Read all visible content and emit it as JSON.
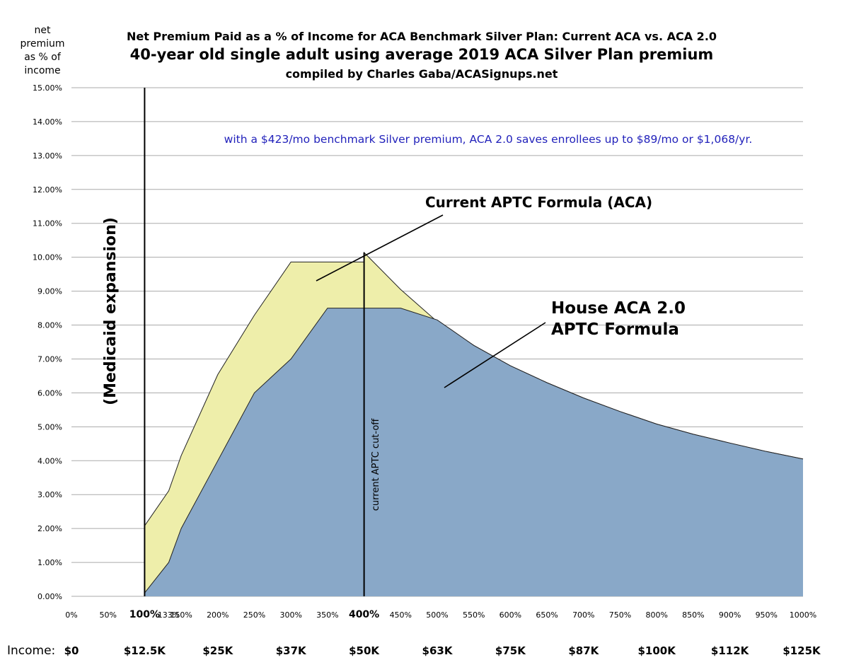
{
  "chart_data": {
    "type": "area",
    "title_lines": [
      "Net Premium Paid as a % of Income for ACA Benchmark Silver Plan: Current ACA vs. ACA 2.0",
      "40-year old single adult using average 2019 ACA Silver Plan premium",
      "compiled by Charles Gaba/ACASignups.net"
    ],
    "ylabel_lines": [
      "net",
      "premium",
      "as % of",
      "income"
    ],
    "ylim": [
      0,
      15
    ],
    "y_ticks": [
      "0.00%",
      "1.00%",
      "2.00%",
      "3.00%",
      "4.00%",
      "5.00%",
      "6.00%",
      "7.00%",
      "8.00%",
      "9.00%",
      "10.00%",
      "11.00%",
      "12.00%",
      "13.00%",
      "14.00%",
      "15.00%"
    ],
    "x_ticks": [
      {
        "x": 0,
        "label": "0%"
      },
      {
        "x": 50,
        "label": "50%"
      },
      {
        "x": 100,
        "label": "100%",
        "bold": true
      },
      {
        "x": 133,
        "label": "133%"
      },
      {
        "x": 150,
        "label": "150%"
      },
      {
        "x": 200,
        "label": "200%"
      },
      {
        "x": 250,
        "label": "250%"
      },
      {
        "x": 300,
        "label": "300%"
      },
      {
        "x": 350,
        "label": "350%"
      },
      {
        "x": 400,
        "label": "400%",
        "bold": true
      },
      {
        "x": 450,
        "label": "450%"
      },
      {
        "x": 500,
        "label": "500%"
      },
      {
        "x": 550,
        "label": "550%"
      },
      {
        "x": 600,
        "label": "600%"
      },
      {
        "x": 650,
        "label": "650%"
      },
      {
        "x": 700,
        "label": "700%"
      },
      {
        "x": 750,
        "label": "750%"
      },
      {
        "x": 800,
        "label": "800%"
      },
      {
        "x": 850,
        "label": "850%"
      },
      {
        "x": 900,
        "label": "900%"
      },
      {
        "x": 950,
        "label": "950%"
      },
      {
        "x": 1000,
        "label": "1000%"
      }
    ],
    "income_label": "Income:",
    "income_ticks": [
      {
        "x": 0,
        "label": "$0"
      },
      {
        "x": 100,
        "label": "$12.5K"
      },
      {
        "x": 200,
        "label": "$25K"
      },
      {
        "x": 300,
        "label": "$37K"
      },
      {
        "x": 400,
        "label": "$50K"
      },
      {
        "x": 500,
        "label": "$63K"
      },
      {
        "x": 600,
        "label": "$75K"
      },
      {
        "x": 700,
        "label": "$87K"
      },
      {
        "x": 800,
        "label": "$100K"
      },
      {
        "x": 900,
        "label": "$112K"
      },
      {
        "x": 1000,
        "label": "$125K"
      }
    ],
    "series": [
      {
        "name": "Current APTC Formula (ACA)",
        "color": "#eeeeaa",
        "points": [
          [
            100,
            2.08
          ],
          [
            133,
            3.11
          ],
          [
            150,
            4.15
          ],
          [
            200,
            6.54
          ],
          [
            250,
            8.29
          ],
          [
            300,
            9.86
          ],
          [
            400,
            9.86
          ],
          [
            400,
            10.14
          ],
          [
            450,
            9.05
          ],
          [
            500,
            8.1
          ],
          [
            550,
            7.4
          ],
          [
            600,
            6.8
          ],
          [
            650,
            6.3
          ],
          [
            700,
            5.85
          ],
          [
            750,
            5.45
          ],
          [
            800,
            5.08
          ],
          [
            850,
            4.78
          ],
          [
            900,
            4.52
          ],
          [
            950,
            4.27
          ],
          [
            1000,
            4.05
          ]
        ]
      },
      {
        "name": "House ACA 2.0 APTC Formula",
        "color": "#89a8c8",
        "points": [
          [
            100,
            0.1
          ],
          [
            133,
            1.0
          ],
          [
            150,
            2.0
          ],
          [
            200,
            4.0
          ],
          [
            250,
            6.0
          ],
          [
            300,
            7.0
          ],
          [
            350,
            8.5
          ],
          [
            450,
            8.5
          ],
          [
            500,
            8.15
          ],
          [
            550,
            7.4
          ],
          [
            600,
            6.8
          ],
          [
            650,
            6.3
          ],
          [
            700,
            5.85
          ],
          [
            750,
            5.45
          ],
          [
            800,
            5.08
          ],
          [
            850,
            4.78
          ],
          [
            900,
            4.52
          ],
          [
            950,
            4.27
          ],
          [
            1000,
            4.05
          ]
        ]
      }
    ],
    "vlines": [
      {
        "x": 100,
        "label": "(Medicaid expansion)"
      },
      {
        "x": 400,
        "label": "current APTC cut-off"
      }
    ],
    "annotations": {
      "savings": "with a $423/mo benchmark Silver premium, ACA 2.0 saves enrollees up to $89/mo or $1,068/yr.",
      "current_label": "Current APTC Formula (ACA)",
      "house_label_lines": [
        "House ACA 2.0",
        "APTC Formula"
      ]
    },
    "grid": true,
    "colors": {
      "annotation_blue": "#2222bb",
      "gridline": "#aaaaaa"
    }
  }
}
